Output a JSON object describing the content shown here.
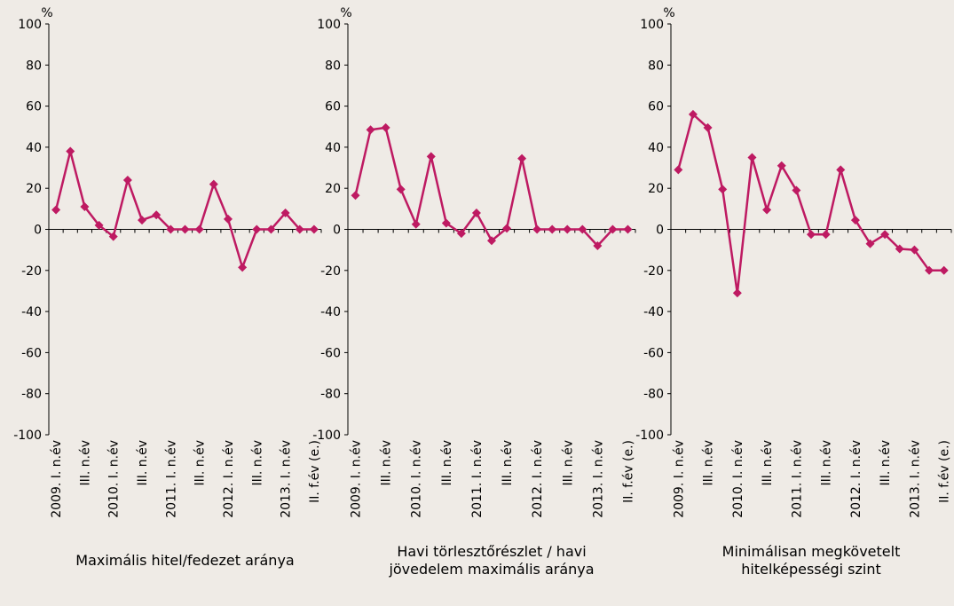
{
  "chart_data": [
    {
      "type": "line",
      "title": "Maximális hitel/fedezet aránya",
      "y_unit": "%",
      "categories": [
        "2009. I. n.év",
        null,
        "III. n.év",
        null,
        "2010. I. n.év",
        null,
        "III. n.év",
        null,
        "2011. I. n.év",
        null,
        "III. n.év",
        null,
        "2012. I. n.év",
        null,
        "III. n.év",
        null,
        "2013. I. n.év",
        null,
        "II. f.év (e.)"
      ],
      "values": [
        9.5,
        38,
        11,
        2,
        -3.5,
        24,
        4.5,
        7,
        0,
        0,
        0,
        22,
        5,
        -18.5,
        0,
        0,
        8,
        0,
        0
      ],
      "color": "#be1a62",
      "ylim": [
        -100,
        100
      ],
      "yticks": [
        -100,
        -80,
        -60,
        -40,
        -20,
        0,
        20,
        40,
        60,
        80,
        100
      ]
    },
    {
      "type": "line",
      "title": "Havi törlesztőrészlet / havi jövedelem maximális aránya",
      "y_unit": "%",
      "categories": [
        "2009. I. n.év",
        null,
        "III. n.év",
        null,
        "2010. I. n.év",
        null,
        "III. n.év",
        null,
        "2011. I. n.év",
        null,
        "III. n.év",
        null,
        "2012. I. n.év",
        null,
        "III. n.év",
        null,
        "2013. I. n.év",
        null,
        "II. f.év (e.)"
      ],
      "values": [
        16.5,
        48.5,
        49.5,
        19.5,
        2.5,
        35.5,
        3,
        -2,
        8,
        -5.5,
        0.5,
        34.5,
        0,
        0,
        0,
        0,
        -8,
        0,
        0
      ],
      "color": "#be1a62",
      "ylim": [
        -100,
        100
      ],
      "yticks": [
        -100,
        -80,
        -60,
        -40,
        -20,
        0,
        20,
        40,
        60,
        80,
        100
      ]
    },
    {
      "type": "line",
      "title": "Minimálisan megkövetelt hitelképességi szint",
      "y_unit": "%",
      "categories": [
        "2009. I. n.év",
        null,
        "III. n.év",
        null,
        "2010. I. n.év",
        null,
        "III. n.év",
        null,
        "2011. I. n.év",
        null,
        "III. n.év",
        null,
        "2012. I. n.év",
        null,
        "III. n.év",
        null,
        "2013. I. n.év",
        null,
        "II. f.év (e.)"
      ],
      "values": [
        29,
        56,
        49.5,
        19.5,
        -31,
        35,
        9.5,
        31,
        19,
        -2.5,
        -2.5,
        29,
        4.5,
        -7,
        -2.5,
        -9.5,
        -10,
        -20,
        -20
      ],
      "color": "#be1a62",
      "ylim": [
        -100,
        100
      ],
      "yticks": [
        -100,
        -80,
        -60,
        -40,
        -20,
        0,
        20,
        40,
        60,
        80,
        100
      ]
    }
  ]
}
